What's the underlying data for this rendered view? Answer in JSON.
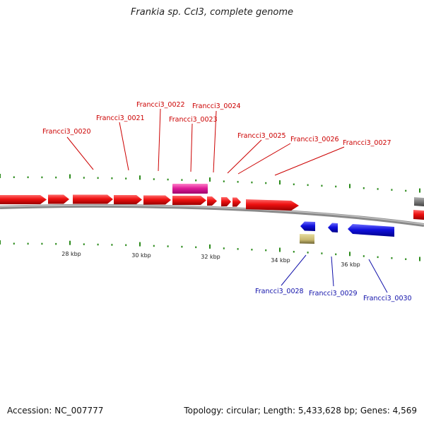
{
  "title": "Frankia sp. CcI3, complete genome",
  "footer": {
    "accession_label": "Accession:",
    "accession": "NC_007777",
    "topology_label": "Topology:",
    "topology": "circular",
    "length_label": "Length:",
    "length": "5,433,628 bp",
    "genes_label": "Genes:",
    "genes": "4,569"
  },
  "colors": {
    "forward_gene": "#ee1111",
    "forward_label": "#cc0000",
    "reverse_gene": "#1111dd",
    "reverse_label": "#1111aa",
    "rna_gene": "#e0209a",
    "misc_feature": "#c8b870",
    "tick": "#2a8a1a",
    "backbone": "#8a8a8a",
    "partial_gene": "#7a7a7a"
  },
  "scale_labels": [
    "28 kbp",
    "30 kbp",
    "32 kbp",
    "34 kbp",
    "36 kbp"
  ],
  "forward_genes": [
    "Francci3_0020",
    "Francci3_0021",
    "Francci3_0022",
    "Francci3_0023",
    "Francci3_0024",
    "Francci3_0025",
    "Francci3_0026",
    "Francci3_0027"
  ],
  "reverse_genes": [
    "Francci3_0028",
    "Francci3_0029",
    "Francci3_0030"
  ]
}
